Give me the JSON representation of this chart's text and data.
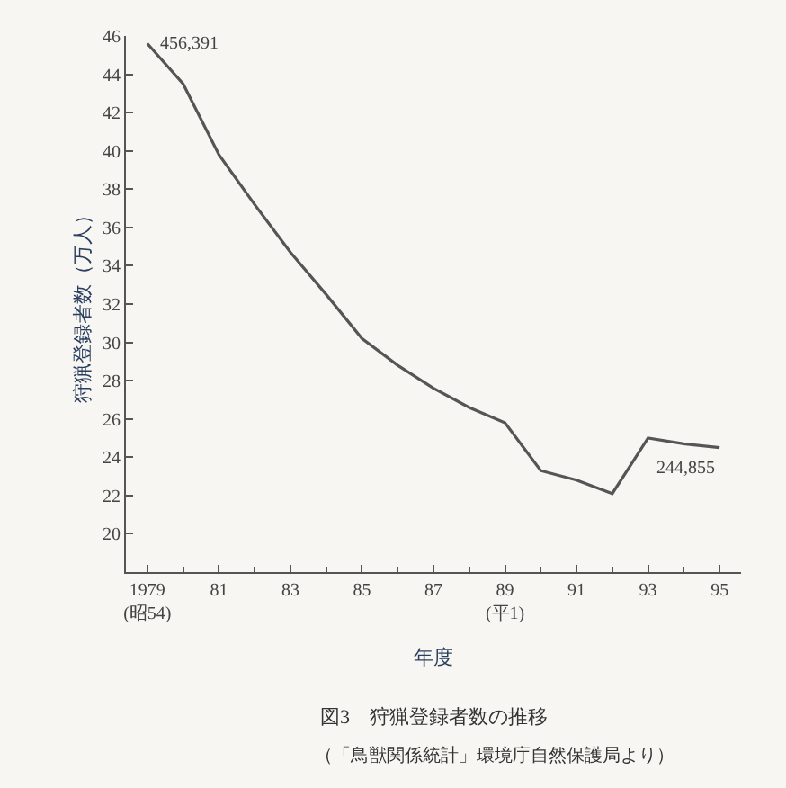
{
  "chart_data": {
    "type": "line",
    "title": "図3　狩猟登録者数の推移",
    "subtitle": "（「鳥獣関係統計」環境庁自然保護局より）",
    "xlabel": "年度",
    "ylabel": "狩猟登録者数（万人）",
    "x": [
      1979,
      1980,
      1981,
      1982,
      1983,
      1984,
      1985,
      1986,
      1987,
      1988,
      1989,
      1990,
      1991,
      1992,
      1993,
      1994,
      1995
    ],
    "series": [
      {
        "color": "#555555",
        "values": [
          45.6,
          43.5,
          39.8,
          37.2,
          34.7,
          32.5,
          30.2,
          28.8,
          27.6,
          26.6,
          25.8,
          23.3,
          22.8,
          22.1,
          25.0,
          24.7,
          24.5
        ]
      }
    ],
    "annotations": [
      {
        "text": "456,391",
        "x": 1979,
        "y": 45.6
      },
      {
        "text": "244,855",
        "x": 1995,
        "y": 24.5
      }
    ],
    "xlim": [
      1978.4,
      1995.6
    ],
    "ylim": [
      18,
      46
    ],
    "xticks": [
      {
        "value": 1979,
        "label": "1979\n(昭54)"
      },
      {
        "value": 1981,
        "label": "81"
      },
      {
        "value": 1983,
        "label": "83"
      },
      {
        "value": 1985,
        "label": "85"
      },
      {
        "value": 1987,
        "label": "87"
      },
      {
        "value": 1989,
        "label": "89\n(平1)"
      },
      {
        "value": 1991,
        "label": "91"
      },
      {
        "value": 1993,
        "label": "93"
      },
      {
        "value": 1995,
        "label": "95"
      }
    ],
    "yticks": [
      20,
      22,
      24,
      26,
      28,
      30,
      32,
      34,
      36,
      38,
      40,
      42,
      44,
      46
    ],
    "grid": false,
    "marker": "none",
    "line_style": "solid"
  }
}
